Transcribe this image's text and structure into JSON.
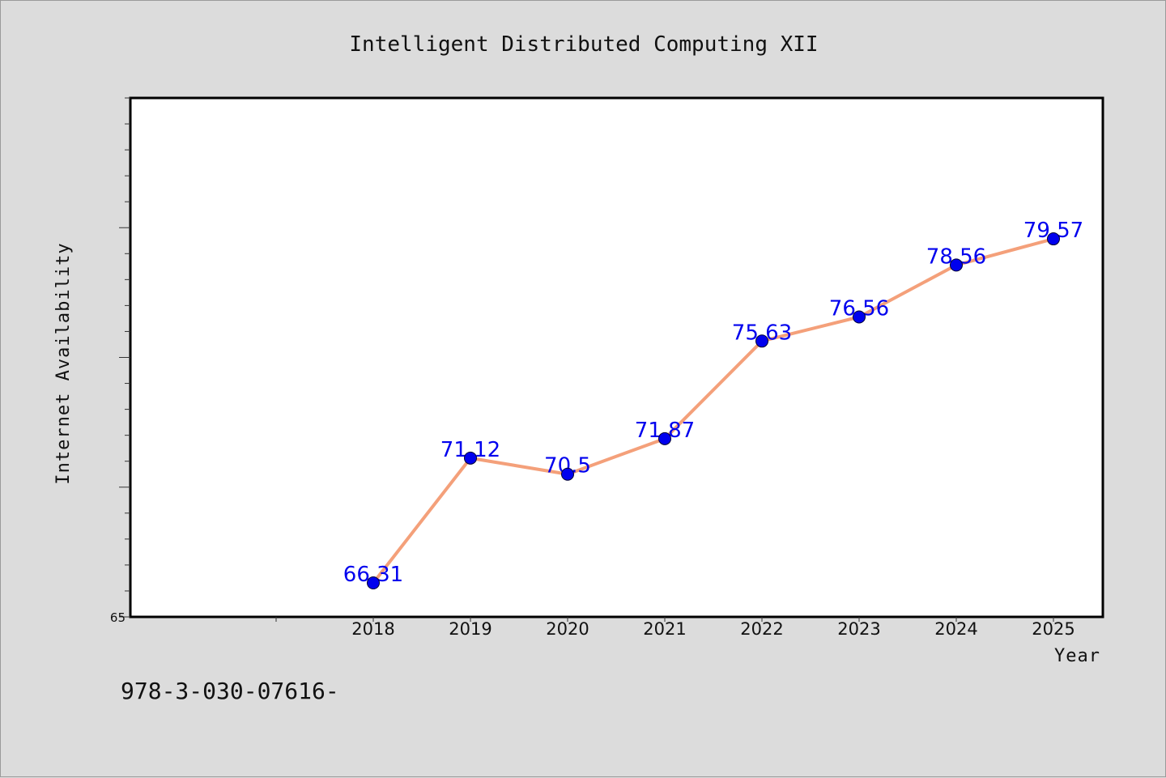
{
  "chart_data": {
    "type": "line",
    "title": "Intelligent Distributed Computing XII",
    "xlabel": "Year",
    "ylabel": "Internet Availability",
    "categories": [
      "2018",
      "2019",
      "2020",
      "2021",
      "2022",
      "2023",
      "2024",
      "2025"
    ],
    "series": [
      {
        "values": [
          66.31,
          71.12,
          70.5,
          71.87,
          75.63,
          76.56,
          78.56,
          79.57
        ],
        "labels": [
          "66.31",
          "71.12",
          "70.5",
          "71.87",
          "75.63",
          "76.56",
          "78.56",
          "79.57"
        ]
      }
    ],
    "ylim": [
      65,
      85
    ],
    "y_tick_labels": [
      "65"
    ],
    "grid": false,
    "line_color": "#f4a07a",
    "marker_color": "#0000ee",
    "label_color": "#0000ee"
  },
  "footer": {
    "text": "978-3-030-07616-"
  }
}
